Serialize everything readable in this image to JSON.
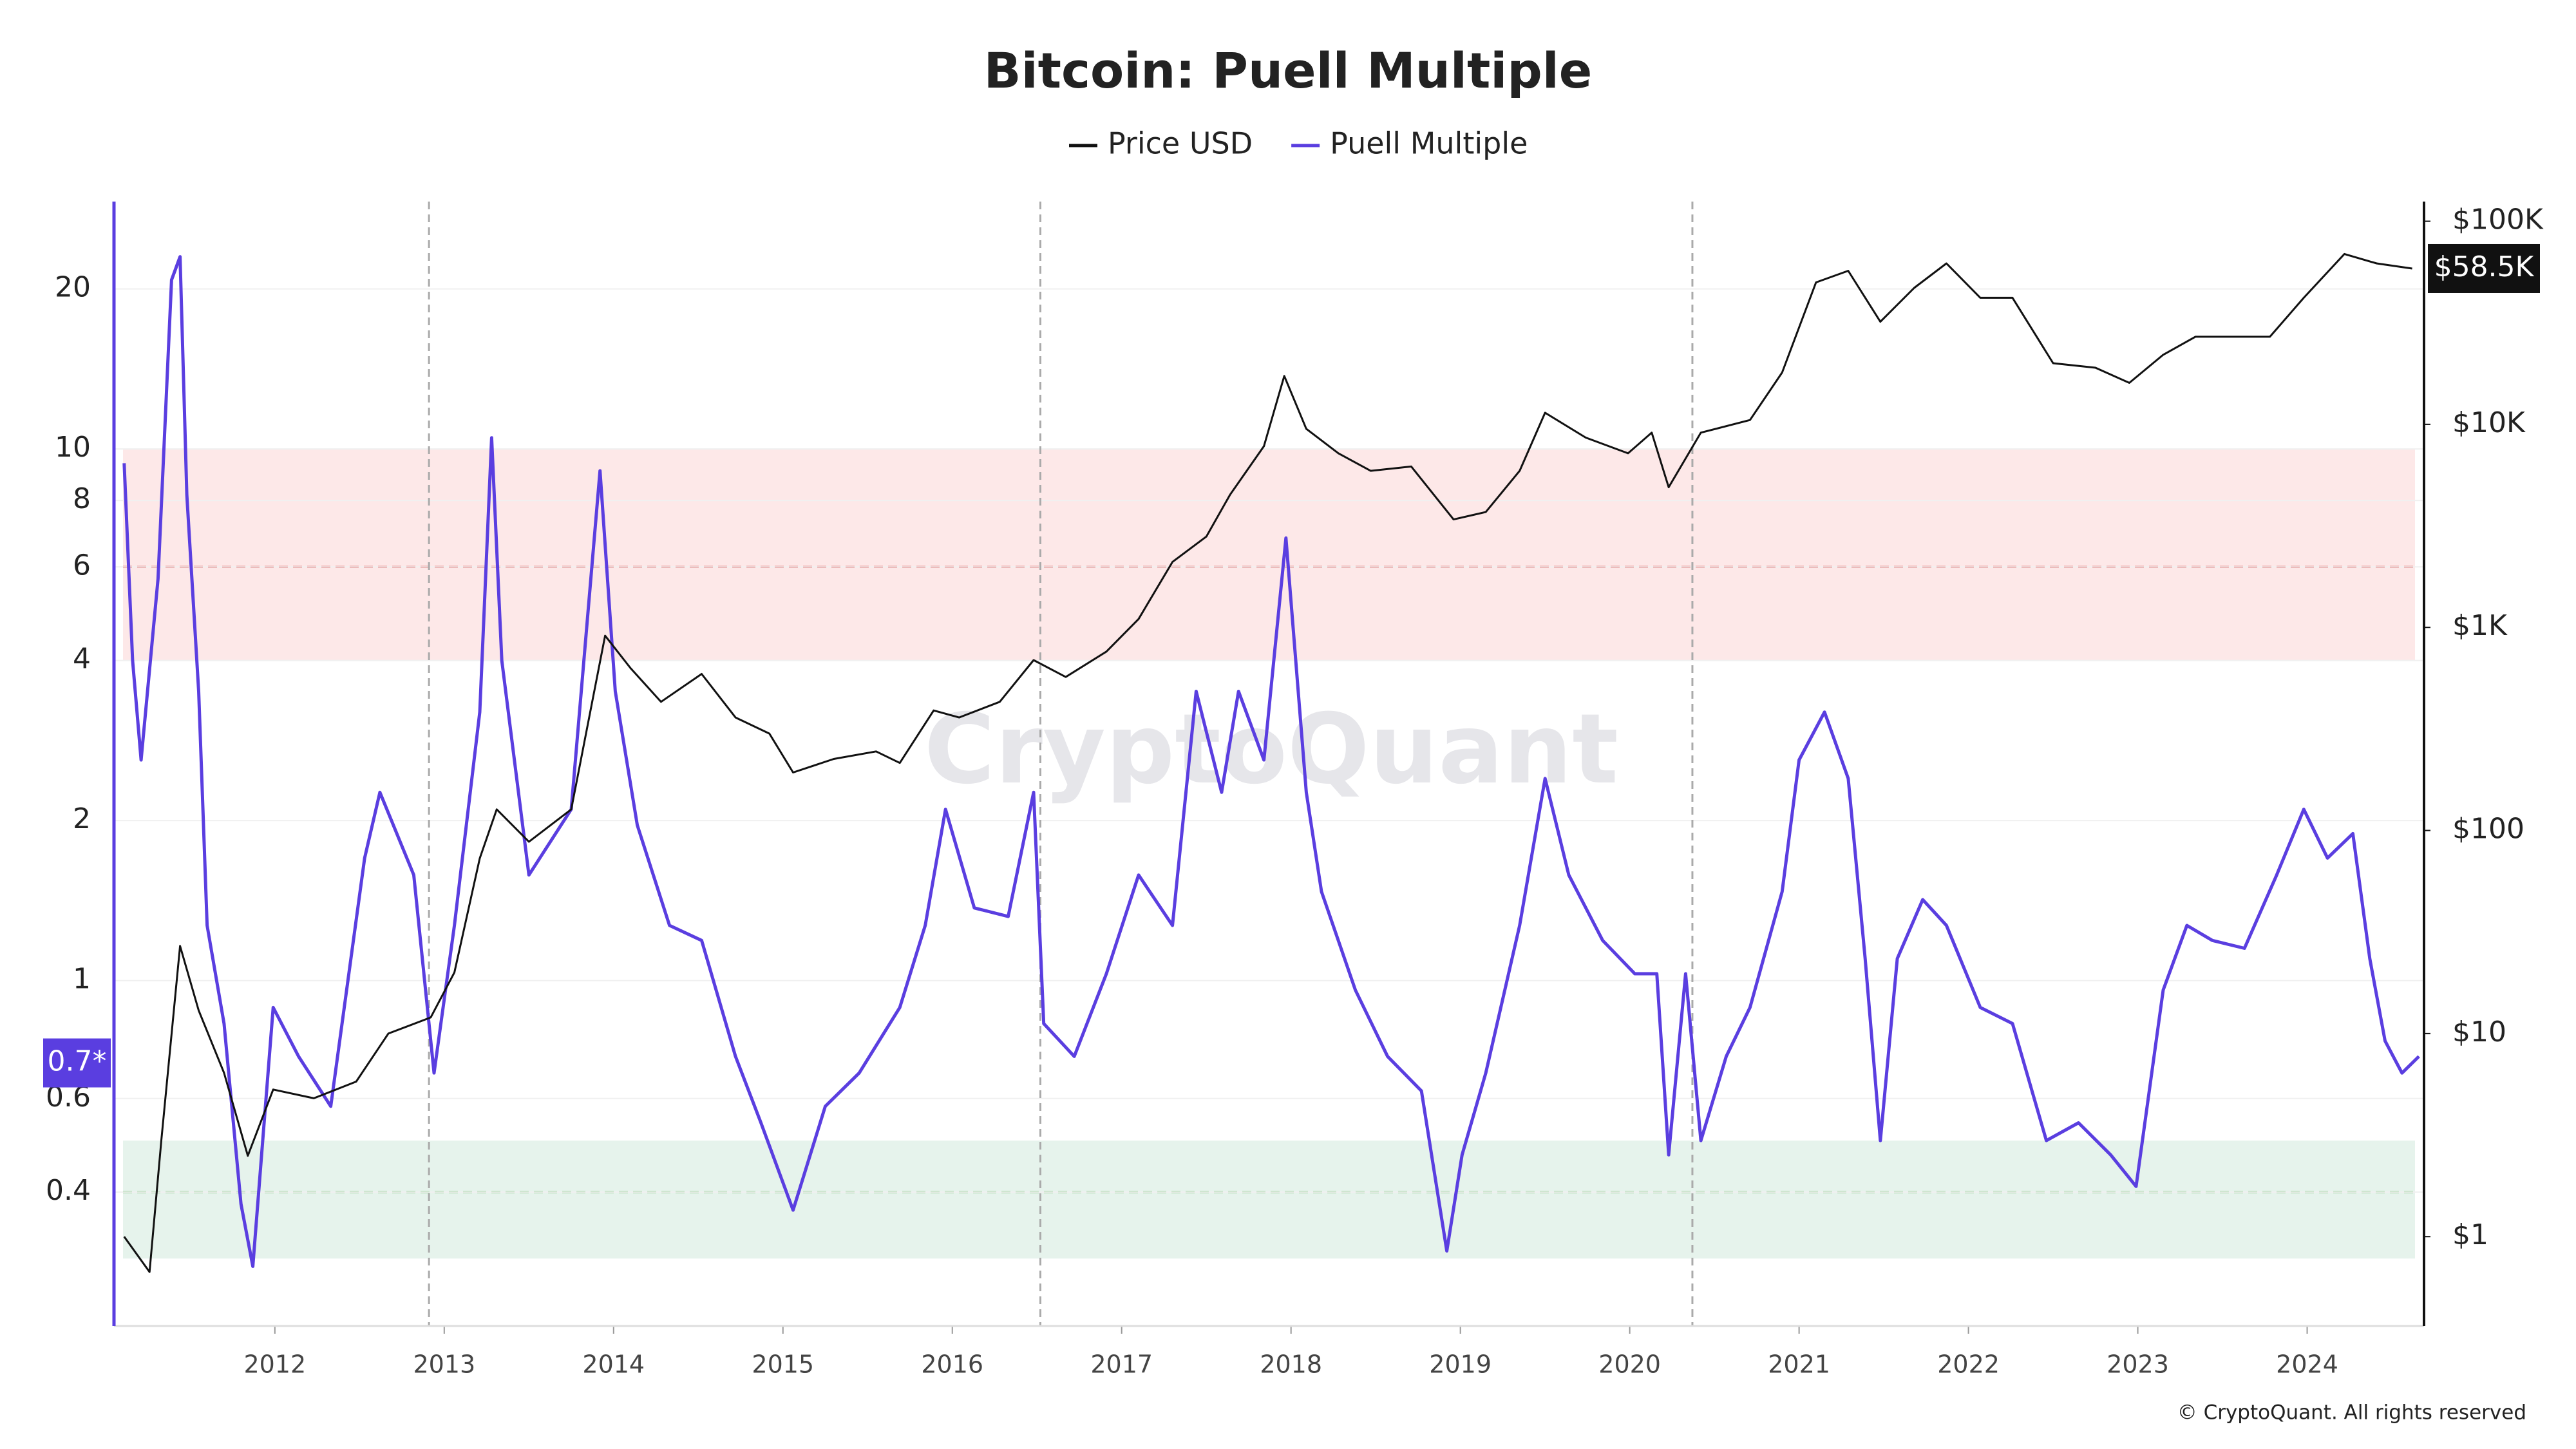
{
  "chart_data": {
    "type": "line",
    "title": "Bitcoin: Puell Multiple",
    "watermark": "CryptoQuant",
    "copyright": "© CryptoQuant. All rights reserved",
    "xlim": [
      2011.05,
      2024.69
    ],
    "xticks": [
      2012,
      2013,
      2014,
      2015,
      2016,
      2017,
      2018,
      2019,
      2020,
      2021,
      2022,
      2023,
      2024
    ],
    "ylim": [
      0.224,
      29.2
    ],
    "ylog": true,
    "yticks": [
      0.4,
      0.6,
      1,
      2,
      4,
      6,
      8,
      10,
      20
    ],
    "y2lim": [
      0.363,
      125000
    ],
    "y2log": true,
    "y2ticks": [
      {
        "value": 1,
        "label": "$1"
      },
      {
        "value": 10,
        "label": "$10"
      },
      {
        "value": 100,
        "label": "$100"
      },
      {
        "value": 1000,
        "label": "$1K"
      },
      {
        "value": 10000,
        "label": "$10K"
      },
      {
        "value": 100000,
        "label": "$100K"
      }
    ],
    "grid": true,
    "legend": "top",
    "bands": [
      {
        "from": 4,
        "to": 10,
        "line": 6,
        "color": "#fde8e8",
        "line_color": "#e06060"
      },
      {
        "from": 0.3,
        "to": 0.5,
        "line": 0.4,
        "color": "#e6f3ec",
        "line_color": "#5cb85c"
      }
    ],
    "vlines": [
      2012.91,
      2016.52,
      2020.37
    ],
    "annotations": [
      {
        "label": "$58.5K",
        "value": 58500,
        "axis": "y2",
        "color": "#111111"
      },
      {
        "label": "0.7*",
        "value": 0.7,
        "axis": "y",
        "color": "#5a3ee0"
      }
    ],
    "series": [
      {
        "name": "Price USD",
        "color": "#111111",
        "axis": "y2",
        "x": [
          2011.11,
          2011.26,
          2011.33,
          2011.44,
          2011.55,
          2011.7,
          2011.84,
          2011.99,
          2012.23,
          2012.48,
          2012.67,
          2012.92,
          2013.06,
          2013.21,
          2013.31,
          2013.5,
          2013.75,
          2013.95,
          2014.1,
          2014.28,
          2014.52,
          2014.72,
          2014.92,
          2015.06,
          2015.3,
          2015.55,
          2015.69,
          2015.89,
          2016.04,
          2016.28,
          2016.48,
          2016.67,
          2016.91,
          2017.1,
          2017.3,
          2017.5,
          2017.64,
          2017.84,
          2017.96,
          2018.09,
          2018.28,
          2018.47,
          2018.71,
          2018.96,
          2019.15,
          2019.35,
          2019.5,
          2019.74,
          2019.99,
          2020.13,
          2020.23,
          2020.42,
          2020.71,
          2020.9,
          2021.1,
          2021.29,
          2021.48,
          2021.68,
          2021.87,
          2022.07,
          2022.26,
          2022.5,
          2022.75,
          2022.95,
          2023.15,
          2023.34,
          2023.58,
          2023.78,
          2023.98,
          2024.22,
          2024.41,
          2024.62
        ],
        "values": [
          1,
          0.67,
          3,
          27,
          13,
          6.4,
          2.5,
          5.3,
          4.8,
          5.8,
          10,
          12,
          20,
          73,
          127,
          88,
          127,
          910,
          630,
          430,
          590,
          360,
          300,
          193,
          225,
          245,
          215,
          390,
          360,
          430,
          690,
          570,
          760,
          1100,
          2100,
          2800,
          4500,
          7800,
          17300,
          9500,
          7200,
          5900,
          6200,
          3400,
          3700,
          5900,
          11400,
          8600,
          7200,
          9100,
          4900,
          9100,
          10500,
          18000,
          50000,
          57000,
          32000,
          47000,
          62000,
          42000,
          42000,
          20000,
          19000,
          16000,
          22000,
          27000,
          27000,
          27000,
          42000,
          69000,
          62000,
          58500
        ]
      },
      {
        "name": "Puell Multiple",
        "color": "#5a3ee0",
        "axis": "y",
        "x": [
          2011.11,
          2011.16,
          2011.21,
          2011.31,
          2011.39,
          2011.44,
          2011.48,
          2011.55,
          2011.6,
          2011.7,
          2011.8,
          2011.87,
          2011.99,
          2012.14,
          2012.33,
          2012.53,
          2012.62,
          2012.82,
          2012.94,
          2013.06,
          2013.21,
          2013.28,
          2013.34,
          2013.5,
          2013.75,
          2013.92,
          2014.01,
          2014.14,
          2014.33,
          2014.52,
          2014.72,
          2014.87,
          2015.06,
          2015.25,
          2015.45,
          2015.69,
          2015.84,
          2015.96,
          2016.13,
          2016.33,
          2016.48,
          2016.54,
          2016.72,
          2016.91,
          2017.1,
          2017.3,
          2017.44,
          2017.59,
          2017.69,
          2017.84,
          2017.97,
          2018.09,
          2018.18,
          2018.38,
          2018.57,
          2018.77,
          2018.92,
          2019.01,
          2019.15,
          2019.35,
          2019.5,
          2019.64,
          2019.84,
          2020.03,
          2020.16,
          2020.23,
          2020.33,
          2020.42,
          2020.57,
          2020.71,
          2020.9,
          2021.0,
          2021.15,
          2021.29,
          2021.39,
          2021.48,
          2021.58,
          2021.73,
          2021.87,
          2022.07,
          2022.26,
          2022.46,
          2022.65,
          2022.84,
          2022.99,
          2023.15,
          2023.29,
          2023.44,
          2023.63,
          2023.82,
          2023.98,
          2024.12,
          2024.27,
          2024.37,
          2024.46,
          2024.56,
          2024.66
        ],
        "values": [
          9.4,
          4.0,
          2.6,
          5.7,
          20.8,
          23,
          8.2,
          3.5,
          1.27,
          0.83,
          0.38,
          0.29,
          0.89,
          0.72,
          0.58,
          1.7,
          2.26,
          1.58,
          0.67,
          1.27,
          3.2,
          10.5,
          4.0,
          1.58,
          2.1,
          9.1,
          3.5,
          1.96,
          1.27,
          1.19,
          0.72,
          0.54,
          0.37,
          0.58,
          0.67,
          0.89,
          1.27,
          2.1,
          1.37,
          1.32,
          2.26,
          0.83,
          0.72,
          1.03,
          1.58,
          1.27,
          3.5,
          2.26,
          3.5,
          2.6,
          6.8,
          2.26,
          1.47,
          0.96,
          0.72,
          0.62,
          0.31,
          0.47,
          0.67,
          1.27,
          2.4,
          1.58,
          1.19,
          1.03,
          1.03,
          0.47,
          1.03,
          0.5,
          0.72,
          0.89,
          1.47,
          2.6,
          3.2,
          2.4,
          1.1,
          0.5,
          1.1,
          1.42,
          1.27,
          0.89,
          0.83,
          0.5,
          0.54,
          0.47,
          0.41,
          0.96,
          1.27,
          1.19,
          1.15,
          1.58,
          2.1,
          1.7,
          1.89,
          1.1,
          0.77,
          0.67,
          0.72
        ]
      }
    ]
  }
}
